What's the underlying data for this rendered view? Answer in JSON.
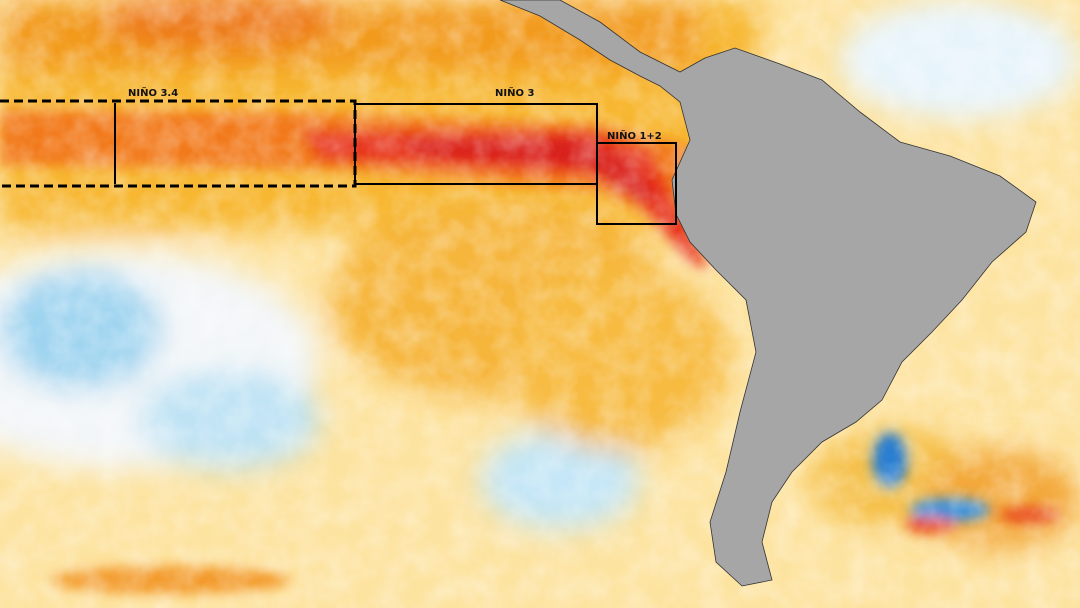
{
  "regions": [
    {
      "label": "NIÑO 3.4"
    },
    {
      "label": "NIÑO 3"
    },
    {
      "label": "NIÑO 1+2"
    }
  ]
}
